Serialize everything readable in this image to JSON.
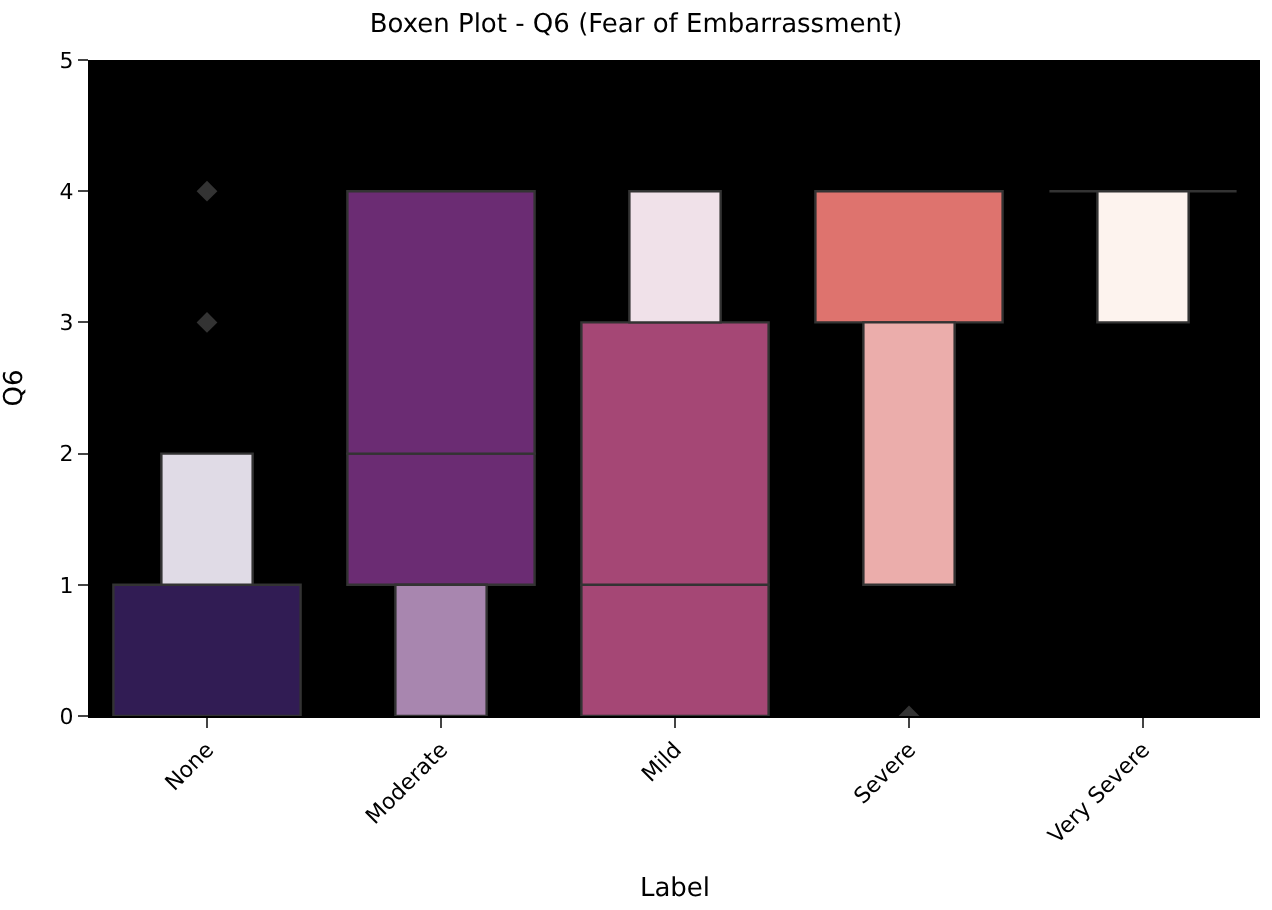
{
  "chart_data": {
    "type": "bar",
    "title": "Boxen Plot - Q6 (Fear of Embarrassment)",
    "xlabel": "Label",
    "ylabel": "Q6",
    "categories": [
      "None",
      "Moderate",
      "Mild",
      "Severe",
      "Very Severe"
    ],
    "series": [
      {
        "base": [
          0,
          1,
          0,
          3,
          4
        ],
        "values": [
          1,
          1,
          1,
          1,
          0
        ],
        "colors": [
          "#311c54",
          "#6b2c73",
          "#a54775",
          "#de736e",
          "#333333"
        ]
      },
      {
        "base": [
          null,
          2,
          1,
          null,
          null
        ],
        "values": [
          null,
          2,
          2,
          null,
          null
        ],
        "colors": [
          "#311c54",
          "#6b2c73",
          "#a54775",
          "#de736e",
          "#de736e"
        ]
      },
      {
        "base": [
          1,
          0,
          3,
          1,
          3
        ],
        "values": [
          1,
          1,
          1,
          2,
          1
        ],
        "colors": [
          "#e0dbe6",
          "#a886af",
          "#f0e1e9",
          "#ebadab",
          "#fdf3ee"
        ]
      },
      {
        "type": "scatter",
        "x": [
          "None",
          "None",
          "Severe"
        ],
        "values": [
          3,
          4,
          0
        ],
        "color": "#333333",
        "marker": "diamond"
      }
    ],
    "ylim": [
      0,
      5
    ],
    "yticks": [
      0,
      1,
      2,
      3,
      4,
      5
    ],
    "grid": false
  }
}
